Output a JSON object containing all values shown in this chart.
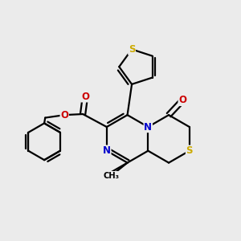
{
  "background_color": "#ebebeb",
  "atom_colors": {
    "N": "#0000cc",
    "O": "#cc0000",
    "S": "#ccaa00"
  },
  "bond_lw": 1.6,
  "figsize": [
    3.0,
    3.0
  ],
  "dpi": 100,
  "xlim": [
    -2.6,
    2.6
  ],
  "ylim": [
    -2.0,
    2.2
  ]
}
